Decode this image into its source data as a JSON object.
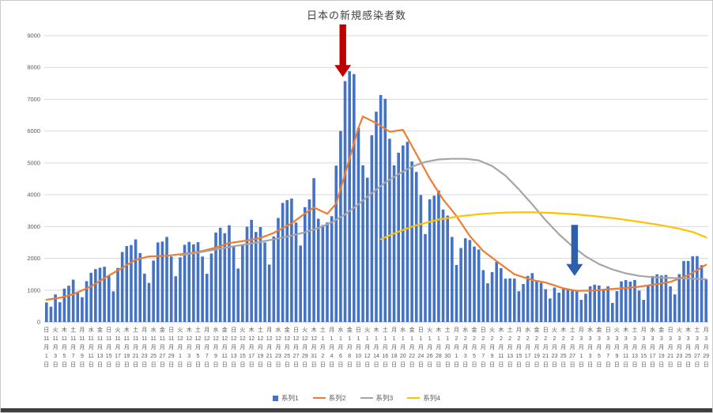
{
  "colors": {
    "series1": "#4472C4",
    "series2": "#ED7D31",
    "series3": "#A5A5A5",
    "series4": "#FFC000",
    "red_arrow": "#C00000",
    "blue_arrow": "#2E5FAC"
  },
  "legend": {
    "items": [
      {
        "label": "系列1"
      },
      {
        "label": "系列2"
      },
      {
        "label": "系列3"
      },
      {
        "label": "系列4"
      }
    ]
  },
  "chart_data": {
    "type": "combo-bar-line",
    "title": "日本の新規感染者数",
    "ylim": [
      0,
      9000
    ],
    "yticks": [
      0,
      1000,
      2000,
      3000,
      4000,
      5000,
      6000,
      7000,
      8000,
      9000
    ],
    "grid": true,
    "legend_position": "bottom",
    "month_char": "月",
    "day_char": "日",
    "x_ticks": [
      [
        "日",
        11,
        1
      ],
      [
        "火",
        11,
        3
      ],
      [
        "木",
        11,
        5
      ],
      [
        "土",
        11,
        7
      ],
      [
        "月",
        11,
        9
      ],
      [
        "水",
        11,
        11
      ],
      [
        "金",
        11,
        13
      ],
      [
        "日",
        11,
        15
      ],
      [
        "火",
        11,
        17
      ],
      [
        "木",
        11,
        19
      ],
      [
        "土",
        11,
        21
      ],
      [
        "月",
        11,
        23
      ],
      [
        "水",
        11,
        25
      ],
      [
        "金",
        11,
        27
      ],
      [
        "日",
        11,
        29
      ],
      [
        "火",
        12,
        1
      ],
      [
        "木",
        12,
        3
      ],
      [
        "土",
        12,
        5
      ],
      [
        "月",
        12,
        7
      ],
      [
        "水",
        12,
        9
      ],
      [
        "金",
        12,
        11
      ],
      [
        "日",
        12,
        13
      ],
      [
        "火",
        12,
        15
      ],
      [
        "木",
        12,
        17
      ],
      [
        "土",
        12,
        19
      ],
      [
        "月",
        12,
        21
      ],
      [
        "水",
        12,
        23
      ],
      [
        "金",
        12,
        25
      ],
      [
        "日",
        12,
        27
      ],
      [
        "火",
        12,
        29
      ],
      [
        "木",
        12,
        31
      ],
      [
        "土",
        1,
        2
      ],
      [
        "月",
        1,
        4
      ],
      [
        "水",
        1,
        6
      ],
      [
        "金",
        1,
        8
      ],
      [
        "日",
        1,
        10
      ],
      [
        "火",
        1,
        12
      ],
      [
        "木",
        1,
        14
      ],
      [
        "土",
        1,
        16
      ],
      [
        "月",
        1,
        18
      ],
      [
        "水",
        1,
        20
      ],
      [
        "金",
        1,
        22
      ],
      [
        "日",
        1,
        24
      ],
      [
        "火",
        1,
        26
      ],
      [
        "木",
        1,
        28
      ],
      [
        "土",
        1,
        30
      ],
      [
        "月",
        2,
        1
      ],
      [
        "水",
        2,
        3
      ],
      [
        "金",
        2,
        5
      ],
      [
        "日",
        2,
        7
      ],
      [
        "火",
        2,
        9
      ],
      [
        "木",
        2,
        11
      ],
      [
        "土",
        2,
        13
      ],
      [
        "月",
        2,
        15
      ],
      [
        "水",
        2,
        17
      ],
      [
        "金",
        2,
        19
      ],
      [
        "日",
        2,
        21
      ],
      [
        "火",
        2,
        23
      ],
      [
        "木",
        2,
        25
      ],
      [
        "土",
        2,
        27
      ],
      [
        "月",
        3,
        1
      ],
      [
        "水",
        3,
        3
      ],
      [
        "金",
        3,
        5
      ],
      [
        "日",
        3,
        7
      ],
      [
        "火",
        3,
        9
      ],
      [
        "木",
        3,
        11
      ],
      [
        "土",
        3,
        13
      ],
      [
        "月",
        3,
        15
      ],
      [
        "水",
        3,
        17
      ],
      [
        "金",
        3,
        19
      ],
      [
        "日",
        3,
        21
      ],
      [
        "火",
        3,
        23
      ],
      [
        "木",
        3,
        25
      ],
      [
        "土",
        3,
        27
      ],
      [
        "月",
        3,
        29
      ]
    ],
    "bars": {
      "name": "系列1",
      "color": "#4472C4",
      "values": [
        614,
        480,
        867,
        620,
        1050,
        1141,
        1331,
        957,
        780,
        1284,
        1547,
        1661,
        1704,
        1737,
        1441,
        963,
        1699,
        2201,
        2386,
        2418,
        2596,
        2168,
        1520,
        1229,
        1931,
        2501,
        2528,
        2674,
        2058,
        1438,
        2030,
        2427,
        2518,
        2442,
        2508,
        2058,
        1515,
        2152,
        2811,
        2962,
        2790,
        3041,
        2387,
        1680,
        2410,
        2994,
        3211,
        2829,
        2982,
        2501,
        1806,
        2688,
        3271,
        3742,
        3832,
        3881,
        3125,
        2403,
        3610,
        3852,
        4520,
        3246,
        3049,
        3127,
        3325,
        4915,
        6004,
        7571,
        7882,
        7790,
        6097,
        4925,
        4535,
        5870,
        6609,
        7133,
        7014,
        5759,
        4925,
        5320,
        5549,
        5663,
        5045,
        4717,
        3990,
        2764,
        3853,
        3971,
        4133,
        3534,
        3344,
        2673,
        1792,
        2324,
        2631,
        2577,
        2372,
        2277,
        1631,
        1216,
        1570,
        1887,
        1693,
        1362,
        1371,
        1364,
        965,
        1194,
        1448,
        1536,
        1301,
        1234,
        1032,
        740,
        1083,
        921,
        1076,
        1040,
        984,
        999,
        697,
        888,
        1121,
        1173,
        1148,
        1040,
        1121,
        599,
        972,
        1277,
        1316,
        1271,
        1320,
        989,
        695,
        1133,
        1447,
        1500,
        1463,
        1480,
        1121,
        867,
        1504,
        1917,
        1918,
        2066,
        2071,
        1785,
        1348
      ]
    },
    "lines": [
      {
        "name": "系列2",
        "color": "#ED7D31",
        "points": [
          [
            0,
            700
          ],
          [
            3,
            760
          ],
          [
            6,
            870
          ],
          [
            10,
            1120
          ],
          [
            13,
            1380
          ],
          [
            17,
            1700
          ],
          [
            20,
            1960
          ],
          [
            23,
            2060
          ],
          [
            27,
            2080
          ],
          [
            30,
            2130
          ],
          [
            34,
            2200
          ],
          [
            38,
            2340
          ],
          [
            41,
            2480
          ],
          [
            45,
            2560
          ],
          [
            48,
            2640
          ],
          [
            51,
            2800
          ],
          [
            55,
            3100
          ],
          [
            58,
            3410
          ],
          [
            60,
            3600
          ],
          [
            63,
            3400
          ],
          [
            65,
            3720
          ],
          [
            68,
            5130
          ],
          [
            70,
            6100
          ],
          [
            71,
            6460
          ],
          [
            74,
            6250
          ],
          [
            77,
            5980
          ],
          [
            80,
            6040
          ],
          [
            83,
            5280
          ],
          [
            86,
            4510
          ],
          [
            89,
            3850
          ],
          [
            92,
            3330
          ],
          [
            95,
            2700
          ],
          [
            98,
            2230
          ],
          [
            102,
            1810
          ],
          [
            105,
            1500
          ],
          [
            109,
            1320
          ],
          [
            112,
            1240
          ],
          [
            116,
            1060
          ],
          [
            119,
            980
          ],
          [
            123,
            990
          ],
          [
            126,
            1030
          ],
          [
            130,
            1070
          ],
          [
            133,
            1110
          ],
          [
            137,
            1190
          ],
          [
            140,
            1260
          ],
          [
            144,
            1470
          ],
          [
            148,
            1800
          ]
        ]
      },
      {
        "name": "系列3",
        "color": "#A5A5A5",
        "points": [
          [
            30,
            2100
          ],
          [
            34,
            2180
          ],
          [
            38,
            2280
          ],
          [
            42,
            2380
          ],
          [
            46,
            2470
          ],
          [
            50,
            2570
          ],
          [
            54,
            2680
          ],
          [
            58,
            2820
          ],
          [
            61,
            2950
          ],
          [
            64,
            3130
          ],
          [
            67,
            3380
          ],
          [
            70,
            3700
          ],
          [
            73,
            4050
          ],
          [
            76,
            4380
          ],
          [
            79,
            4650
          ],
          [
            82,
            4880
          ],
          [
            85,
            5030
          ],
          [
            88,
            5110
          ],
          [
            91,
            5130
          ],
          [
            94,
            5130
          ],
          [
            97,
            5080
          ],
          [
            100,
            4900
          ],
          [
            103,
            4600
          ],
          [
            106,
            4170
          ],
          [
            109,
            3700
          ],
          [
            112,
            3200
          ],
          [
            115,
            2760
          ],
          [
            118,
            2380
          ],
          [
            121,
            2060
          ],
          [
            124,
            1820
          ],
          [
            127,
            1650
          ],
          [
            130,
            1530
          ],
          [
            133,
            1450
          ],
          [
            136,
            1410
          ],
          [
            139,
            1390
          ],
          [
            142,
            1375
          ],
          [
            145,
            1360
          ],
          [
            148,
            1345
          ]
        ]
      },
      {
        "name": "系列4",
        "color": "#FFC000",
        "points": [
          [
            75,
            2600
          ],
          [
            79,
            2840
          ],
          [
            83,
            3040
          ],
          [
            88,
            3220
          ],
          [
            93,
            3330
          ],
          [
            98,
            3400
          ],
          [
            103,
            3440
          ],
          [
            108,
            3450
          ],
          [
            113,
            3430
          ],
          [
            118,
            3390
          ],
          [
            123,
            3330
          ],
          [
            128,
            3250
          ],
          [
            133,
            3150
          ],
          [
            138,
            3040
          ],
          [
            142,
            2930
          ],
          [
            145,
            2830
          ],
          [
            148,
            2660
          ]
        ]
      }
    ],
    "annotations": [
      {
        "name": "red-arrow",
        "shape": "arrow-down",
        "color": "#C00000",
        "x_index": 66.5,
        "tip_value": 7700,
        "tail_value": 9350
      },
      {
        "name": "blue-arrow",
        "shape": "arrow-down",
        "color": "#2E5FAC",
        "x_index": 118.5,
        "tip_value": 1450,
        "tail_value": 3050
      }
    ]
  }
}
